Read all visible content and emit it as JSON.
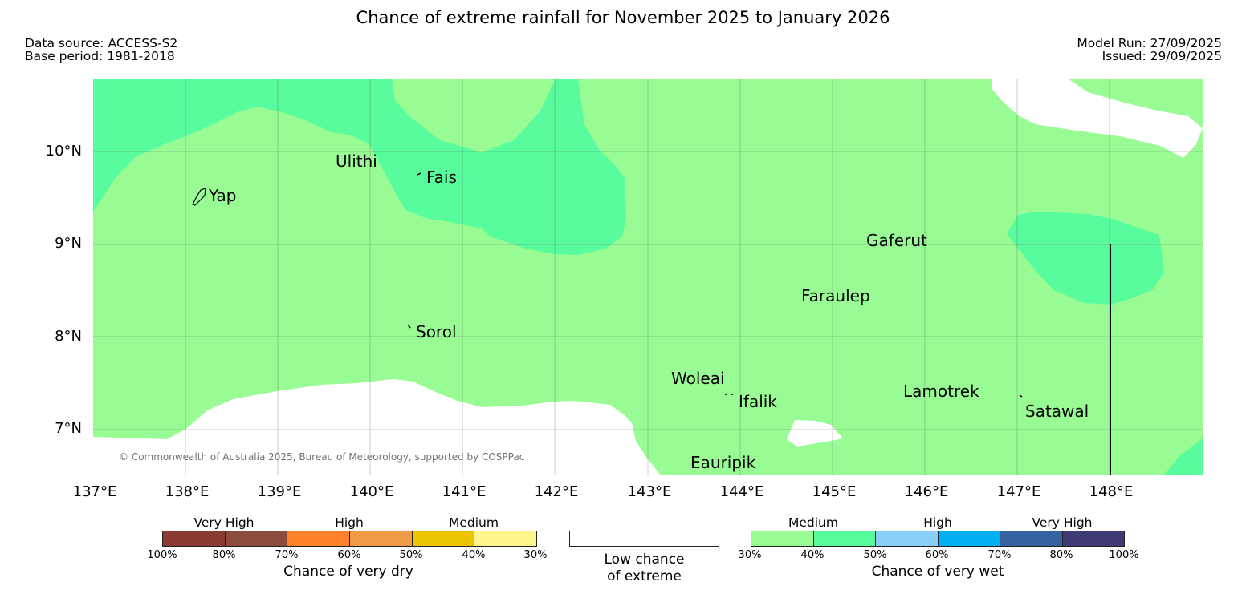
{
  "header": {
    "title": "Chance of extreme rainfall for November 2025 to January 2026",
    "data_source": "Data source: ACCESS-S2",
    "base_period": "Base period: 1981-2018",
    "model_run": "Model Run: 27/09/2025",
    "issued": "Issued: 29/09/2025"
  },
  "map": {
    "lat_labels": [
      "10°N",
      "9°N",
      "8°N",
      "7°N"
    ],
    "lon_labels": [
      "137°E",
      "138°E",
      "139°E",
      "140°E",
      "141°E",
      "142°E",
      "143°E",
      "144°E",
      "145°E",
      "146°E",
      "147°E",
      "148°E"
    ],
    "places": [
      "Ulithi",
      "Fais",
      "Yap",
      "Gaferut",
      "Faraulep",
      "Sorol",
      "Woleai",
      "Ifalik",
      "Lamotrek",
      "Satawal",
      "Eauripik"
    ],
    "copyright": "© Commonwealth of Australia 2025, Bureau of Meteorology, supported by COSPPac",
    "colors": {
      "wet_medium_30_40": "#99FB94",
      "wet_medium_40_50": "#58FC9C",
      "low_chance": "#ffffff",
      "gridline": "#444444"
    }
  },
  "legend": {
    "dry": {
      "categories": [
        "Very High",
        "High",
        "Medium"
      ],
      "ticks": [
        "100%",
        "80%",
        "70%",
        "60%",
        "50%",
        "40%",
        "30%"
      ],
      "colors": [
        "#8B3A33",
        "#8C4C3B",
        "#FF8129",
        "#EE9A46",
        "#EEC300",
        "#FFF78E"
      ],
      "title": "Chance of very dry"
    },
    "low": {
      "line1": "Low chance",
      "line2": "of extreme"
    },
    "wet": {
      "categories": [
        "Medium",
        "High",
        "Very High"
      ],
      "ticks": [
        "30%",
        "40%",
        "50%",
        "60%",
        "70%",
        "80%",
        "100%"
      ],
      "colors": [
        "#99FB94",
        "#58FC9C",
        "#88CFF8",
        "#00B0F0",
        "#35619F",
        "#3E3A77"
      ],
      "title": "Chance of very wet"
    }
  }
}
